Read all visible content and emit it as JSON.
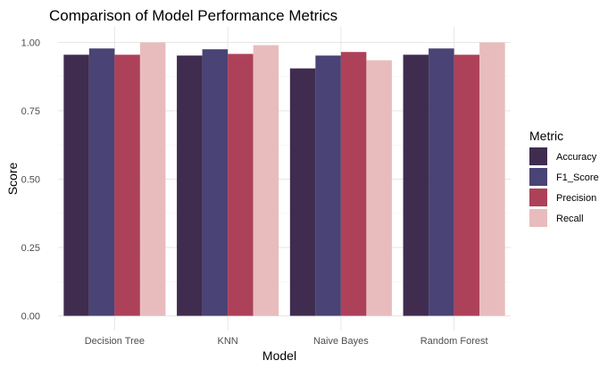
{
  "chart_data": {
    "type": "bar",
    "title": "Comparison of Model Performance Metrics",
    "xlabel": "Model",
    "ylabel": "Score",
    "ylim": [
      0,
      1.05
    ],
    "y_ticks": [
      "0.00",
      "0.25",
      "0.50",
      "0.75",
      "1.00"
    ],
    "categories": [
      "Decision Tree",
      "KNN",
      "Naive Bayes",
      "Random Forest"
    ],
    "series": [
      {
        "name": "Accuracy",
        "color": "#3f2c4f",
        "values": [
          0.955,
          0.952,
          0.905,
          0.955
        ]
      },
      {
        "name": "F1_Score",
        "color": "#4a4375",
        "values": [
          0.978,
          0.975,
          0.952,
          0.978
        ]
      },
      {
        "name": "Precision",
        "color": "#ad4159",
        "values": [
          0.955,
          0.958,
          0.965,
          0.955
        ]
      },
      {
        "name": "Recall",
        "color": "#e8bcbd",
        "values": [
          1.0,
          0.99,
          0.935,
          1.0
        ]
      }
    ],
    "legend": {
      "title": "Metric",
      "position": "right"
    },
    "grid": true
  }
}
